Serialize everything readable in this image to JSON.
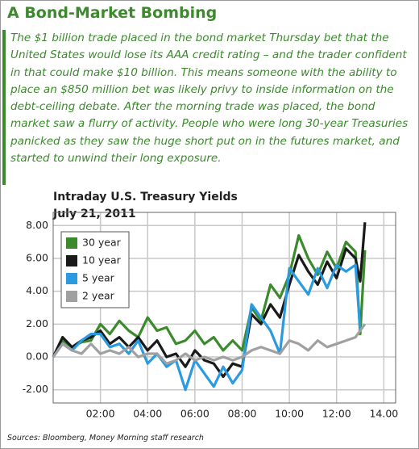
{
  "header": {
    "title": "A Bond-Market Bombing",
    "text": "The $1 billion trade placed in the bond market Thursday bet that the United States would lose its AAA credit rating – and the trader confident in that could make $10 billion. This means someone with the ability to place an $850 million bet was likely privy to inside information on the debt-ceiling debate. After the morning trade was placed, the bond market saw a flurry of activity. People who were long 30-year Treasuries panicked as they saw the huge short put on in the futures market, and started to unwind their long exposure."
  },
  "chart_data": {
    "type": "line",
    "title": "Intraday U.S. Treasury Yields",
    "subtitle": "July 21, 2011",
    "x": [
      0,
      0.4,
      0.8,
      1.2,
      1.6,
      2.0,
      2.4,
      2.8,
      3.2,
      3.6,
      4.0,
      4.4,
      4.8,
      5.2,
      5.6,
      6.0,
      6.4,
      6.8,
      7.2,
      7.6,
      8.0,
      8.4,
      8.8,
      9.2,
      9.6,
      10.0,
      10.4,
      10.8,
      11.2,
      11.6,
      12.0,
      12.4,
      12.8,
      13.0,
      13.2
    ],
    "series": [
      {
        "name": "30 year",
        "color": "#3b8a2c",
        "values": [
          0,
          1.0,
          0.6,
          0.9,
          1.0,
          2.0,
          1.4,
          2.2,
          1.6,
          1.2,
          2.4,
          1.6,
          1.8,
          0.8,
          1.0,
          1.6,
          0.8,
          1.2,
          0.4,
          1.0,
          0.4,
          3.0,
          2.2,
          4.4,
          3.6,
          5.0,
          7.4,
          6.0,
          5.0,
          6.4,
          5.4,
          7.0,
          6.4,
          1.4,
          6.5
        ]
      },
      {
        "name": "10 year",
        "color": "#1a1a1a",
        "values": [
          0,
          1.2,
          0.6,
          1.0,
          1.2,
          1.6,
          0.8,
          1.2,
          0.6,
          1.2,
          0.4,
          1.0,
          0,
          0.2,
          -0.6,
          0.4,
          -0.2,
          -0.4,
          -1.2,
          -0.4,
          -0.6,
          2.6,
          2.0,
          3.2,
          2.4,
          4.4,
          6.2,
          5.2,
          4.4,
          5.8,
          4.8,
          6.6,
          6.0,
          4.6,
          8.2
        ]
      },
      {
        "name": "5 year",
        "color": "#2a9be0",
        "values": [
          0,
          0.8,
          0.4,
          1.0,
          1.4,
          1.4,
          0.6,
          0.8,
          0.2,
          1.0,
          -0.4,
          0.2,
          -0.6,
          -0.2,
          -2.0,
          -0.2,
          -1.0,
          -1.8,
          -0.6,
          -1.6,
          -0.8,
          3.2,
          2.4,
          1.6,
          0.2,
          5.4,
          4.6,
          3.8,
          5.4,
          4.2,
          5.6,
          5.2,
          5.6,
          1.6,
          null
        ]
      },
      {
        "name": "2 year",
        "color": "#a0a0a0",
        "values": [
          0,
          0.8,
          0.4,
          0.2,
          0.8,
          0.2,
          0.4,
          0.2,
          0.6,
          0,
          0.2,
          0.2,
          -0.4,
          -0.2,
          0.2,
          -0.2,
          0,
          -0.2,
          0,
          -0.2,
          0,
          0.4,
          0.6,
          0.4,
          0.2,
          1.0,
          0.8,
          0.4,
          1.0,
          0.6,
          0.8,
          1.0,
          1.2,
          1.6,
          2.0
        ]
      }
    ],
    "xlim": [
      0,
      14.5
    ],
    "xticks": [
      {
        "value": 2,
        "label": "02:00"
      },
      {
        "value": 4,
        "label": "04:00"
      },
      {
        "value": 6,
        "label": "06:00"
      },
      {
        "value": 8,
        "label": "08:00"
      },
      {
        "value": 10,
        "label": "10:00"
      },
      {
        "value": 12,
        "label": "12:00"
      },
      {
        "value": 14,
        "label": "14.00"
      }
    ],
    "ylim": [
      -2.8,
      8.8
    ],
    "yticks": [
      {
        "value": -2,
        "label": "-2.00"
      },
      {
        "value": 0,
        "label": "0.00"
      },
      {
        "value": 2,
        "label": "2.00"
      },
      {
        "value": 4,
        "label": "4.00"
      },
      {
        "value": 6,
        "label": "6.00"
      },
      {
        "value": 8,
        "label": "8.00"
      }
    ],
    "grid": true,
    "legend": "upper left"
  },
  "source": "Sources: Bloomberg, Money Morning staff research"
}
